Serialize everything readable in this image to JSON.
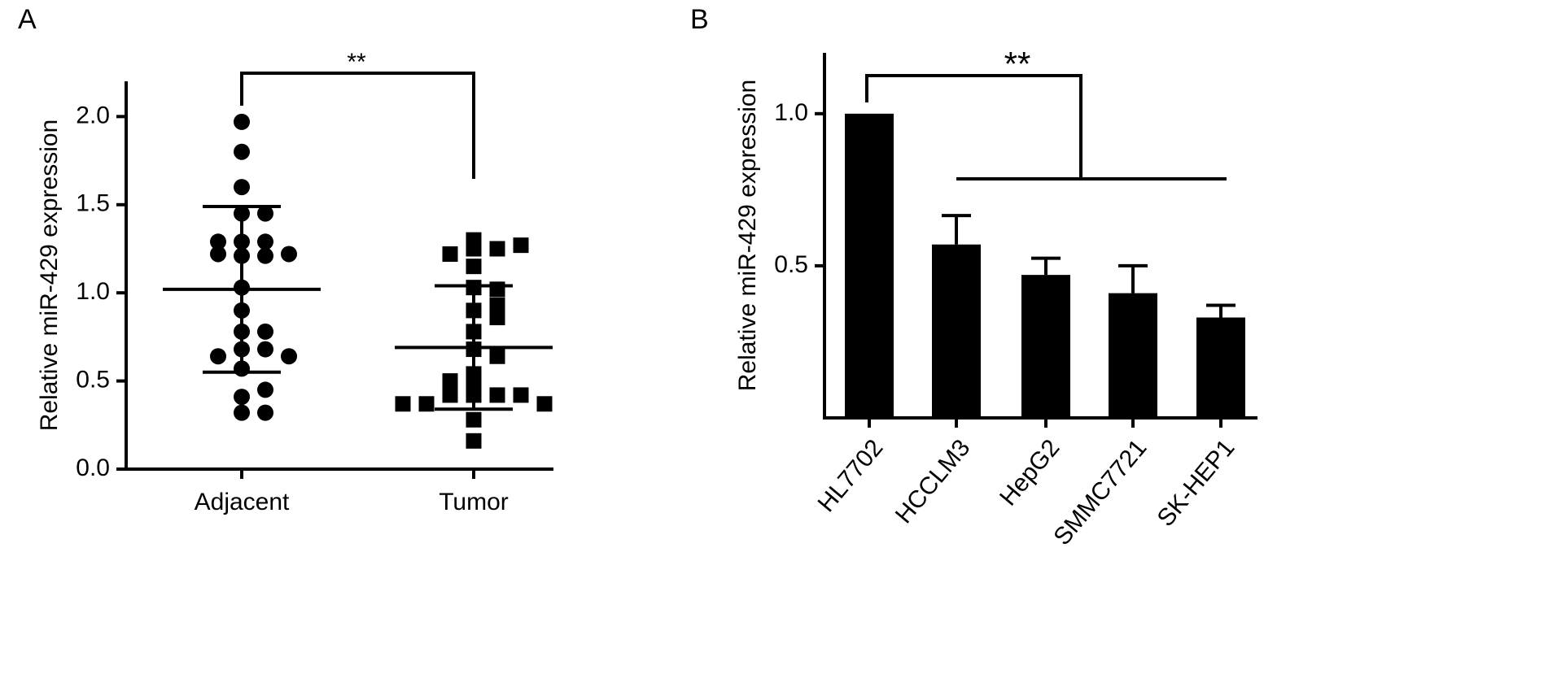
{
  "chart_data": [
    {
      "type": "dotplot",
      "panel": "A",
      "ylabel": "Relative miR-429 expression",
      "categories": [
        "Adjacent",
        "Tumor"
      ],
      "markers": [
        "circle",
        "square"
      ],
      "color": "#000000",
      "points": [
        [
          1.97,
          1.8,
          1.6,
          1.45,
          1.45,
          1.29,
          1.29,
          1.29,
          1.21,
          1.21,
          1.22,
          1.22,
          1.03,
          0.9,
          0.78,
          0.78,
          0.68,
          0.68,
          0.64,
          0.64,
          0.57,
          0.41,
          0.45,
          0.32,
          0.32
        ],
        [
          1.3,
          1.25,
          1.25,
          1.27,
          1.15,
          1.22,
          1.03,
          1.02,
          0.9,
          0.93,
          0.86,
          0.78,
          0.68,
          0.64,
          0.54,
          0.49,
          0.5,
          0.42,
          0.42,
          0.42,
          0.42,
          0.37,
          0.37,
          0.37,
          0.28,
          0.16
        ]
      ],
      "mean": [
        1.02,
        0.69
      ],
      "sd": [
        0.47,
        0.35
      ],
      "annotation": "**",
      "ylim": [
        0,
        2.2
      ],
      "yticks": [
        {
          "value": 0,
          "label": "0.0"
        },
        0.5,
        {
          "value": 1,
          "label": "1.0"
        },
        1.5,
        {
          "value": 2,
          "label": "2.0"
        }
      ]
    },
    {
      "type": "bar",
      "panel": "B",
      "ylabel": "Relative miR-429 expression",
      "categories": [
        "HL7702",
        "HCCLM3",
        "HepG2",
        "SMMC7721",
        "SK-HEP1"
      ],
      "values": [
        1.0,
        0.57,
        0.47,
        0.41,
        0.33
      ],
      "errors": [
        0,
        0.095,
        0.055,
        0.09,
        0.04
      ],
      "color": "#000000",
      "annotation": "**",
      "ylim": [
        0,
        1.2
      ],
      "yticks": [
        0.5,
        {
          "value": 1,
          "label": "1.0"
        }
      ]
    }
  ]
}
